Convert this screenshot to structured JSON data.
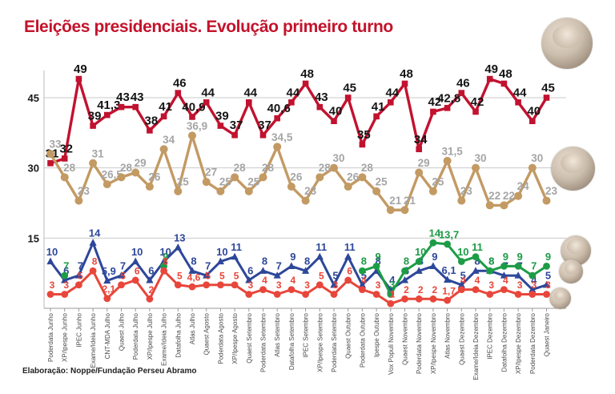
{
  "title": "Eleições presidenciais. Evolução primeiro turno",
  "attribution": "Elaboração: Noppe/Fundação Perseu Abramo",
  "avatars": [
    "lula-photo",
    "bolsonaro-photo",
    "candidate-photo-small-1",
    "candidate-photo-small-2",
    "candidate-photo-small-3"
  ],
  "chart_data": {
    "type": "line",
    "title": "Eleições presidenciais. Evolução primeiro turno",
    "ylim": [
      0,
      52
    ],
    "y_ticks": [
      15,
      30,
      45
    ],
    "grid": "horizontal",
    "legend": "candidate photos at right edge",
    "categories": [
      "Poderdata Junho",
      "XP/Ipespe Junho",
      "IPEC Junho",
      "Exame/Ideia Junho",
      "CNT-MDA Julho",
      "Quaest Julho",
      "Poderdata Julho",
      "XP/Ipespe Julho",
      "Exame/Ideia Julho",
      "Datafolha Julho",
      "Atlas Julho",
      "Quaest Agosto",
      "Poderdata Agosto",
      "XP/Ipespe Agosto",
      "Quaest Setembro",
      "Poderdata Setembro",
      "Atlas Setembro",
      "Datafolha Setembro",
      "IPEC Setembro",
      "XP/Ipespe Setembro",
      "Poderdata Setembro",
      "Quaest Outubro",
      "Poderdata Outubro",
      "Ipespe Outubro",
      "Vox Populi Novembro",
      "Quaest Novembro",
      "Poderdata Novembro",
      "XP/Ipespe Novembro",
      "Atlas Novembro",
      "Quaest Dezembro",
      "Exame/Ideia Dezembro",
      "IPEC Dezembro",
      "Datafolha Dezembro",
      "XP/Ipespe Dezembro",
      "Poderdata Dezembro",
      "Quaest Janeiro"
    ],
    "series": [
      {
        "name": "series-red-top",
        "color": "#c1122f",
        "marker": "square",
        "label_color": "#141414",
        "label_size": 15,
        "values": [
          31,
          32,
          49,
          39,
          41.3,
          43,
          43,
          38,
          41,
          46,
          40.9,
          44,
          39,
          37,
          44,
          37,
          40.6,
          44,
          48,
          43,
          40,
          45,
          35,
          41,
          44,
          48,
          34,
          42,
          42.8,
          46,
          42,
          49,
          48,
          44,
          40,
          45
        ]
      },
      {
        "name": "series-tan",
        "color": "#c39a63",
        "marker": "circle",
        "label_color": "#a5a5a5",
        "label_size": 13.5,
        "values": [
          33,
          28,
          23,
          31,
          26.5,
          28,
          29,
          26,
          34,
          25,
          36.9,
          27,
          25,
          28,
          25,
          28,
          34.5,
          26,
          23,
          28,
          30,
          26,
          28,
          25,
          21,
          21,
          29,
          25,
          31.5,
          23,
          30,
          22,
          22,
          24,
          30,
          23
        ]
      },
      {
        "name": "series-blue",
        "color": "#2d4799",
        "marker": "triangle",
        "label_color": "#2d4799",
        "label_size": 13,
        "values": [
          10,
          6,
          7,
          14,
          5.9,
          7,
          10,
          6,
          10,
          13,
          8,
          7,
          10,
          11,
          6,
          8,
          7,
          9,
          8,
          11,
          5,
          11,
          5,
          8,
          4,
          6,
          8,
          9,
          6.1,
          5,
          8,
          8,
          7,
          7,
          4,
          5
        ]
      },
      {
        "name": "series-green",
        "color": "#1d9c46",
        "marker": "circle",
        "label_color": "#1d9c46",
        "label_size": 13,
        "values": [
          null,
          7,
          null,
          null,
          null,
          null,
          null,
          null,
          9,
          null,
          null,
          null,
          null,
          null,
          null,
          null,
          null,
          null,
          null,
          null,
          null,
          null,
          8,
          9,
          3,
          8,
          10,
          14,
          13.7,
          10,
          11,
          8,
          9,
          9,
          7,
          9
        ]
      },
      {
        "name": "series-small-red",
        "color": "#e8463b",
        "marker": "circle",
        "label_color": "#e8463b",
        "label_size": 12,
        "values": [
          3,
          3,
          5,
          8,
          2.1,
          5,
          6,
          2,
          8,
          5,
          4.6,
          5,
          5,
          5,
          3,
          4,
          3,
          4,
          3,
          5,
          3,
          6,
          4,
          3,
          1,
          2,
          2,
          2,
          1.7,
          4,
          4,
          3,
          4,
          3,
          3,
          3
        ]
      }
    ]
  }
}
